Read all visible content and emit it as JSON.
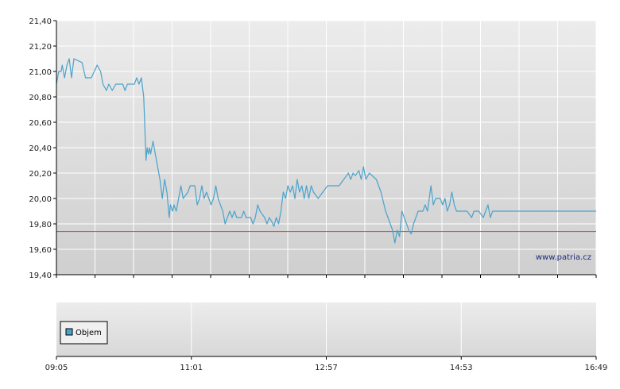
{
  "chart_data": [
    {
      "type": "line",
      "title": "",
      "xlabel": "",
      "ylabel": "",
      "ylim": [
        19.4,
        21.4
      ],
      "yticks": [
        "21,40",
        "21,20",
        "21,00",
        "20,80",
        "20,60",
        "20,40",
        "20,20",
        "20,00",
        "19,80",
        "19,60",
        "19,40"
      ],
      "xlim": [
        "09:05",
        "16:49"
      ],
      "xticks": [
        "09:05",
        "11:01",
        "12:57",
        "14:53",
        "16:49"
      ],
      "grid": true,
      "reference_line": {
        "value": 19.74,
        "color": "#d04040"
      },
      "watermark": "www.patria.cz",
      "series": [
        {
          "color": "#4aa3cc",
          "points": [
            [
              "09:05",
              20.9
            ],
            [
              "09:07",
              21.0
            ],
            [
              "09:09",
              21.0
            ],
            [
              "09:10",
              21.05
            ],
            [
              "09:12",
              20.95
            ],
            [
              "09:14",
              21.05
            ],
            [
              "09:16",
              21.1
            ],
            [
              "09:18",
              20.95
            ],
            [
              "09:20",
              21.1
            ],
            [
              "09:27",
              21.07
            ],
            [
              "09:30",
              20.95
            ],
            [
              "09:35",
              20.95
            ],
            [
              "09:40",
              21.05
            ],
            [
              "09:43",
              21.0
            ],
            [
              "09:45",
              20.9
            ],
            [
              "09:48",
              20.85
            ],
            [
              "09:50",
              20.9
            ],
            [
              "09:53",
              20.85
            ],
            [
              "09:56",
              20.9
            ],
            [
              "10:02",
              20.9
            ],
            [
              "10:04",
              20.85
            ],
            [
              "10:06",
              20.9
            ],
            [
              "10:12",
              20.9
            ],
            [
              "10:14",
              20.95
            ],
            [
              "10:16",
              20.9
            ],
            [
              "10:18",
              20.95
            ],
            [
              "10:20",
              20.8
            ],
            [
              "10:22",
              20.3
            ],
            [
              "10:23",
              20.4
            ],
            [
              "10:24",
              20.35
            ],
            [
              "10:25",
              20.4
            ],
            [
              "10:26",
              20.35
            ],
            [
              "10:28",
              20.45
            ],
            [
              "10:30",
              20.35
            ],
            [
              "10:32",
              20.25
            ],
            [
              "10:34",
              20.15
            ],
            [
              "10:36",
              20.0
            ],
            [
              "10:38",
              20.15
            ],
            [
              "10:40",
              20.05
            ],
            [
              "10:42",
              19.85
            ],
            [
              "10:43",
              19.95
            ],
            [
              "10:45",
              19.9
            ],
            [
              "10:46",
              19.95
            ],
            [
              "10:48",
              19.9
            ],
            [
              "10:50",
              20.0
            ],
            [
              "10:52",
              20.1
            ],
            [
              "10:54",
              20.0
            ],
            [
              "10:58",
              20.05
            ],
            [
              "11:00",
              20.1
            ],
            [
              "11:04",
              20.1
            ],
            [
              "11:06",
              19.95
            ],
            [
              "11:08",
              20.0
            ],
            [
              "11:10",
              20.1
            ],
            [
              "11:12",
              20.0
            ],
            [
              "11:14",
              20.05
            ],
            [
              "11:16",
              20.0
            ],
            [
              "11:18",
              19.95
            ],
            [
              "11:20",
              20.0
            ],
            [
              "11:22",
              20.1
            ],
            [
              "11:24",
              20.0
            ],
            [
              "11:26",
              19.95
            ],
            [
              "11:28",
              19.9
            ],
            [
              "11:30",
              19.8
            ],
            [
              "11:32",
              19.85
            ],
            [
              "11:34",
              19.9
            ],
            [
              "11:36",
              19.85
            ],
            [
              "11:38",
              19.9
            ],
            [
              "11:40",
              19.85
            ],
            [
              "11:44",
              19.85
            ],
            [
              "11:46",
              19.9
            ],
            [
              "11:48",
              19.85
            ],
            [
              "11:52",
              19.85
            ],
            [
              "11:54",
              19.8
            ],
            [
              "11:56",
              19.85
            ],
            [
              "11:58",
              19.95
            ],
            [
              "12:00",
              19.9
            ],
            [
              "12:04",
              19.85
            ],
            [
              "12:06",
              19.8
            ],
            [
              "12:08",
              19.85
            ],
            [
              "12:10",
              19.82
            ],
            [
              "12:12",
              19.78
            ],
            [
              "12:14",
              19.85
            ],
            [
              "12:16",
              19.8
            ],
            [
              "12:18",
              19.9
            ],
            [
              "12:20",
              20.05
            ],
            [
              "12:22",
              20.0
            ],
            [
              "12:24",
              20.1
            ],
            [
              "12:26",
              20.05
            ],
            [
              "12:28",
              20.1
            ],
            [
              "12:30",
              20.0
            ],
            [
              "12:32",
              20.15
            ],
            [
              "12:34",
              20.05
            ],
            [
              "12:36",
              20.1
            ],
            [
              "12:38",
              20.0
            ],
            [
              "12:40",
              20.1
            ],
            [
              "12:42",
              20.0
            ],
            [
              "12:44",
              20.1
            ],
            [
              "12:46",
              20.05
            ],
            [
              "12:50",
              20.0
            ],
            [
              "12:54",
              20.05
            ],
            [
              "12:58",
              20.1
            ],
            [
              "13:04",
              20.1
            ],
            [
              "13:08",
              20.1
            ],
            [
              "13:12",
              20.15
            ],
            [
              "13:16",
              20.2
            ],
            [
              "13:18",
              20.15
            ],
            [
              "13:20",
              20.2
            ],
            [
              "13:22",
              20.18
            ],
            [
              "13:25",
              20.22
            ],
            [
              "13:27",
              20.15
            ],
            [
              "13:29",
              20.25
            ],
            [
              "13:31",
              20.15
            ],
            [
              "13:34",
              20.2
            ],
            [
              "13:40",
              20.15
            ],
            [
              "13:44",
              20.05
            ],
            [
              "13:48",
              19.9
            ],
            [
              "13:52",
              19.8
            ],
            [
              "13:54",
              19.75
            ],
            [
              "13:56",
              19.65
            ],
            [
              "13:58",
              19.75
            ],
            [
              "14:00",
              19.7
            ],
            [
              "14:02",
              19.9
            ],
            [
              "14:04",
              19.85
            ],
            [
              "14:06",
              19.8
            ],
            [
              "14:08",
              19.75
            ],
            [
              "14:10",
              19.72
            ],
            [
              "14:12",
              19.8
            ],
            [
              "14:14",
              19.85
            ],
            [
              "14:16",
              19.9
            ],
            [
              "14:20",
              19.9
            ],
            [
              "14:22",
              19.95
            ],
            [
              "14:24",
              19.9
            ],
            [
              "14:27",
              20.1
            ],
            [
              "14:29",
              19.95
            ],
            [
              "14:31",
              20.0
            ],
            [
              "14:35",
              20.0
            ],
            [
              "14:37",
              19.95
            ],
            [
              "14:39",
              20.0
            ],
            [
              "14:41",
              19.9
            ],
            [
              "14:43",
              19.95
            ],
            [
              "14:45",
              20.05
            ],
            [
              "14:47",
              19.95
            ],
            [
              "14:49",
              19.9
            ],
            [
              "14:53",
              19.9
            ],
            [
              "14:58",
              19.9
            ],
            [
              "15:02",
              19.85
            ],
            [
              "15:04",
              19.9
            ],
            [
              "15:08",
              19.9
            ],
            [
              "15:12",
              19.85
            ],
            [
              "15:14",
              19.9
            ],
            [
              "15:16",
              19.95
            ],
            [
              "15:18",
              19.85
            ],
            [
              "15:20",
              19.9
            ],
            [
              "16:49",
              19.9
            ]
          ]
        }
      ]
    },
    {
      "type": "bar",
      "title": "",
      "legend": [
        "Objem"
      ],
      "legend_color": "#4aa3cc",
      "series": [
        {
          "name": "Objem",
          "values": []
        }
      ]
    }
  ]
}
